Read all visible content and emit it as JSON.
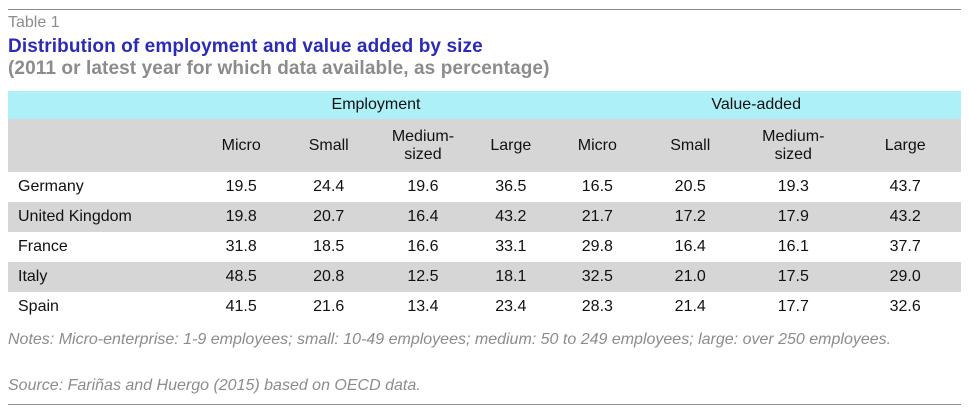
{
  "table_label": "Table 1",
  "title": "Distribution of employment and value added by size",
  "subtitle": "(2011 or latest year for which data available, as percentage)",
  "groups": [
    "Employment",
    "Value-added"
  ],
  "columns": [
    "Micro",
    "Small",
    "Medium-sized",
    "Large",
    "Micro",
    "Small",
    "Medium-sized",
    "Large"
  ],
  "rows": [
    {
      "country": "Germany",
      "values": [
        "19.5",
        "24.4",
        "19.6",
        "36.5",
        "16.5",
        "20.5",
        "19.3",
        "43.7"
      ]
    },
    {
      "country": "United Kingdom",
      "values": [
        "19.8",
        "20.7",
        "16.4",
        "43.2",
        "21.7",
        "17.2",
        "17.9",
        "43.2"
      ]
    },
    {
      "country": "France",
      "values": [
        "31.8",
        "18.5",
        "16.6",
        "33.1",
        "29.8",
        "16.4",
        "16.1",
        "37.7"
      ]
    },
    {
      "country": "Italy",
      "values": [
        "48.5",
        "20.8",
        "12.5",
        "18.1",
        "32.5",
        "21.0",
        "17.5",
        "29.0"
      ]
    },
    {
      "country": "Spain",
      "values": [
        "41.5",
        "21.6",
        "13.4",
        "23.4",
        "28.3",
        "21.4",
        "17.7",
        "32.6"
      ]
    }
  ],
  "notes": "Notes: Micro-enterprise: 1-9 employees; small: 10-49 employees; medium: 50 to 249 employees; large: over 250 employees.",
  "source": "Source: Fariñas and Huergo (2015) based on OECD data."
}
